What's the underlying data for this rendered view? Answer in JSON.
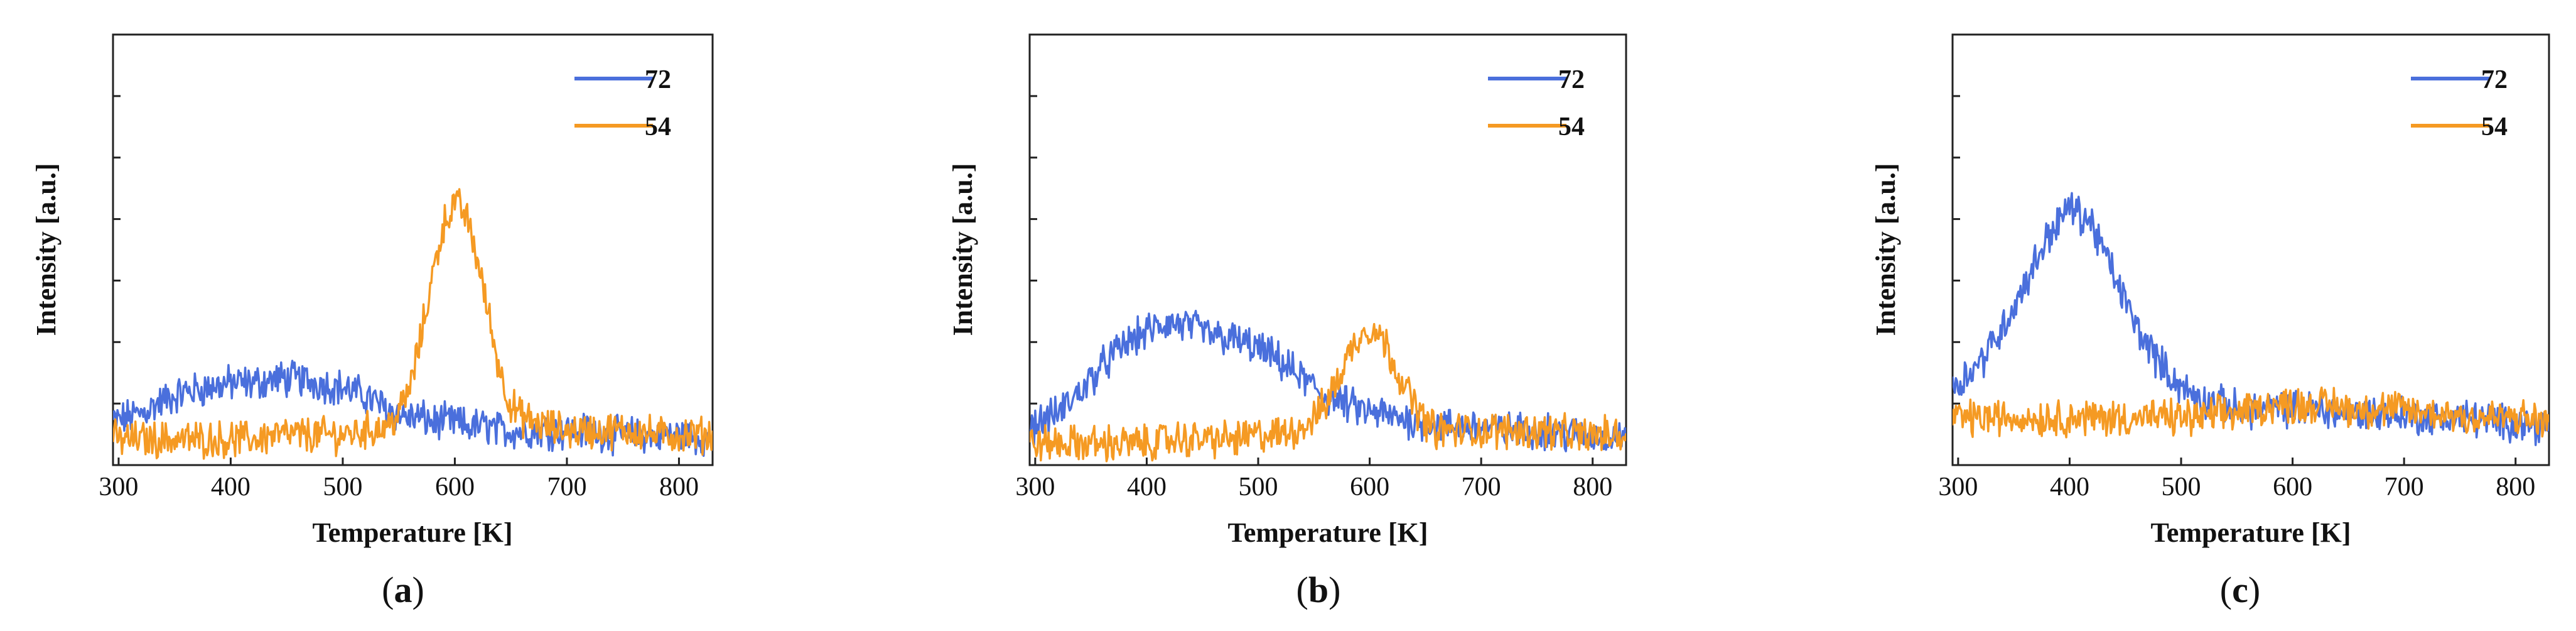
{
  "chart_data": [
    {
      "type": "line",
      "panel_label": "a",
      "xlabel": "Temperature [K]",
      "ylabel": "Intensity [a.u.]",
      "xlim": [
        295,
        830
      ],
      "ylim": [
        0,
        1
      ],
      "xticks": [
        300,
        400,
        500,
        600,
        700,
        800
      ],
      "x": [
        295,
        320,
        340,
        360,
        380,
        400,
        420,
        440,
        460,
        480,
        500,
        520,
        540,
        550,
        560,
        570,
        580,
        590,
        600,
        610,
        620,
        630,
        640,
        650,
        660,
        670,
        680,
        700,
        720,
        740,
        760,
        780,
        800,
        830
      ],
      "series": [
        {
          "name": "72",
          "color": "#4a6fdc",
          "values": [
            0.1,
            0.12,
            0.15,
            0.17,
            0.18,
            0.19,
            0.19,
            0.2,
            0.2,
            0.19,
            0.18,
            0.16,
            0.13,
            0.12,
            0.11,
            0.11,
            0.1,
            0.1,
            0.1,
            0.09,
            0.09,
            0.09,
            0.08,
            0.08,
            0.08,
            0.08,
            0.08,
            0.08,
            0.08,
            0.07,
            0.07,
            0.07,
            0.07,
            0.06
          ]
        },
        {
          "name": "54",
          "color": "#f59a23",
          "values": [
            0.06,
            0.06,
            0.06,
            0.06,
            0.06,
            0.06,
            0.06,
            0.07,
            0.07,
            0.07,
            0.07,
            0.08,
            0.09,
            0.12,
            0.18,
            0.3,
            0.44,
            0.56,
            0.61,
            0.58,
            0.48,
            0.35,
            0.22,
            0.14,
            0.11,
            0.1,
            0.09,
            0.08,
            0.08,
            0.08,
            0.08,
            0.07,
            0.07,
            0.07
          ]
        }
      ]
    },
    {
      "type": "line",
      "panel_label": "b",
      "xlabel": "Temperature [K]",
      "ylabel": "Intensity [a.u.]",
      "xlim": [
        295,
        830
      ],
      "ylim": [
        0,
        1
      ],
      "xticks": [
        300,
        400,
        500,
        600,
        700,
        800
      ],
      "x": [
        295,
        320,
        340,
        360,
        380,
        400,
        420,
        440,
        460,
        480,
        500,
        520,
        540,
        550,
        560,
        570,
        580,
        590,
        600,
        610,
        620,
        630,
        640,
        650,
        660,
        670,
        680,
        700,
        720,
        740,
        760,
        780,
        800,
        830
      ],
      "series": [
        {
          "name": "72",
          "color": "#4a6fdc",
          "values": [
            0.09,
            0.12,
            0.17,
            0.23,
            0.28,
            0.31,
            0.33,
            0.32,
            0.3,
            0.29,
            0.27,
            0.24,
            0.2,
            0.18,
            0.16,
            0.15,
            0.14,
            0.13,
            0.12,
            0.12,
            0.11,
            0.11,
            0.1,
            0.1,
            0.09,
            0.09,
            0.09,
            0.09,
            0.08,
            0.08,
            0.08,
            0.07,
            0.07,
            0.07
          ]
        },
        {
          "name": "54",
          "color": "#f59a23",
          "values": [
            0.05,
            0.05,
            0.05,
            0.05,
            0.05,
            0.05,
            0.06,
            0.06,
            0.06,
            0.06,
            0.07,
            0.07,
            0.09,
            0.11,
            0.14,
            0.19,
            0.25,
            0.3,
            0.32,
            0.3,
            0.25,
            0.19,
            0.14,
            0.1,
            0.08,
            0.08,
            0.08,
            0.08,
            0.08,
            0.08,
            0.08,
            0.07,
            0.07,
            0.07
          ]
        }
      ]
    },
    {
      "type": "line",
      "panel_label": "c",
      "xlabel": "Temperature [K]",
      "ylabel": "Intensity [a.u.]",
      "xlim": [
        295,
        830
      ],
      "ylim": [
        0,
        1
      ],
      "xticks": [
        300,
        400,
        500,
        600,
        700,
        800
      ],
      "x": [
        295,
        320,
        340,
        360,
        380,
        400,
        420,
        440,
        460,
        480,
        500,
        520,
        540,
        550,
        560,
        570,
        580,
        590,
        600,
        610,
        620,
        630,
        640,
        650,
        660,
        670,
        680,
        700,
        720,
        740,
        760,
        780,
        800,
        830
      ],
      "series": [
        {
          "name": "72",
          "color": "#4a6fdc",
          "values": [
            0.18,
            0.24,
            0.32,
            0.42,
            0.53,
            0.6,
            0.56,
            0.44,
            0.32,
            0.24,
            0.18,
            0.15,
            0.14,
            0.13,
            0.13,
            0.13,
            0.13,
            0.13,
            0.13,
            0.13,
            0.13,
            0.13,
            0.12,
            0.12,
            0.12,
            0.12,
            0.12,
            0.12,
            0.11,
            0.11,
            0.11,
            0.1,
            0.1,
            0.09
          ]
        },
        {
          "name": "54",
          "color": "#f59a23",
          "values": [
            0.11,
            0.11,
            0.11,
            0.11,
            0.11,
            0.11,
            0.11,
            0.11,
            0.11,
            0.11,
            0.11,
            0.11,
            0.12,
            0.12,
            0.13,
            0.13,
            0.14,
            0.14,
            0.14,
            0.14,
            0.14,
            0.14,
            0.14,
            0.13,
            0.13,
            0.13,
            0.13,
            0.13,
            0.12,
            0.12,
            0.11,
            0.11,
            0.11,
            0.1
          ]
        }
      ]
    }
  ]
}
